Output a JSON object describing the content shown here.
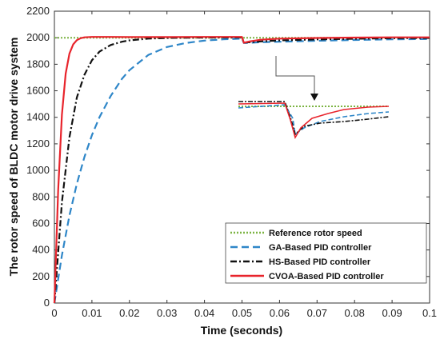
{
  "chart_data": {
    "type": "line",
    "title": "",
    "xlabel": "Time (seconds)",
    "ylabel": "The rotor speed of BLDC motor drive system",
    "xlim": [
      0,
      0.1
    ],
    "ylim": [
      0,
      2200
    ],
    "x_ticks": [
      "0",
      "0.01",
      "0.02",
      "0.03",
      "0.04",
      "0.05",
      "0.06",
      "0.07",
      "0.08",
      "0.09",
      "0.1"
    ],
    "y_ticks": [
      "0",
      "200",
      "400",
      "600",
      "800",
      "1000",
      "1200",
      "1400",
      "1600",
      "1800",
      "2000",
      "2200"
    ],
    "grid": false,
    "legend_position": "bottom-right",
    "series": [
      {
        "name": "Reference rotor speed",
        "color": "#7cb342",
        "style": "dotted",
        "x": [
          0,
          0.1
        ],
        "y": [
          2000,
          2000
        ]
      },
      {
        "name": "GA-Based PID controller",
        "color": "#2e86c8",
        "style": "dashed",
        "x": [
          0,
          0.002,
          0.004,
          0.006,
          0.008,
          0.01,
          0.012,
          0.015,
          0.018,
          0.02,
          0.025,
          0.03,
          0.035,
          0.04,
          0.045,
          0.05,
          0.0505,
          0.052,
          0.055,
          0.06,
          0.07,
          0.08,
          0.09,
          0.1
        ],
        "y": [
          0,
          360,
          660,
          900,
          1100,
          1265,
          1400,
          1560,
          1690,
          1755,
          1870,
          1930,
          1960,
          1978,
          1988,
          1993,
          1960,
          1962,
          1966,
          1970,
          1977,
          1983,
          1988,
          1990
        ]
      },
      {
        "name": "HS-Based PID controller",
        "color": "#111111",
        "style": "dashdot",
        "x": [
          0,
          0.002,
          0.004,
          0.006,
          0.008,
          0.01,
          0.012,
          0.015,
          0.018,
          0.02,
          0.025,
          0.03,
          0.035,
          0.04,
          0.05,
          0.0505,
          0.052,
          0.055,
          0.06,
          0.07,
          0.08,
          0.09,
          0.1
        ],
        "y": [
          0,
          760,
          1250,
          1550,
          1720,
          1830,
          1895,
          1945,
          1970,
          1980,
          1993,
          1998,
          2000,
          2001,
          2002,
          1963,
          1966,
          1972,
          1980,
          1987,
          1992,
          1996,
          1998
        ]
      },
      {
        "name": "CVOA-Based PID controller",
        "color": "#e8242c",
        "style": "solid",
        "x": [
          0,
          0.001,
          0.002,
          0.003,
          0.004,
          0.005,
          0.006,
          0.007,
          0.008,
          0.01,
          0.015,
          0.02,
          0.03,
          0.04,
          0.05,
          0.0505,
          0.052,
          0.055,
          0.06,
          0.07,
          0.08,
          0.09,
          0.1
        ],
        "y": [
          0,
          850,
          1420,
          1730,
          1880,
          1950,
          1982,
          1996,
          2003,
          2006,
          2006,
          2005,
          2005,
          2006,
          2006,
          1962,
          1972,
          1985,
          1993,
          1998,
          2001,
          2003,
          2003
        ]
      }
    ],
    "inset": {
      "description_of_axes": "zoom of disturbance near t=0.05",
      "arrow": true
    }
  }
}
